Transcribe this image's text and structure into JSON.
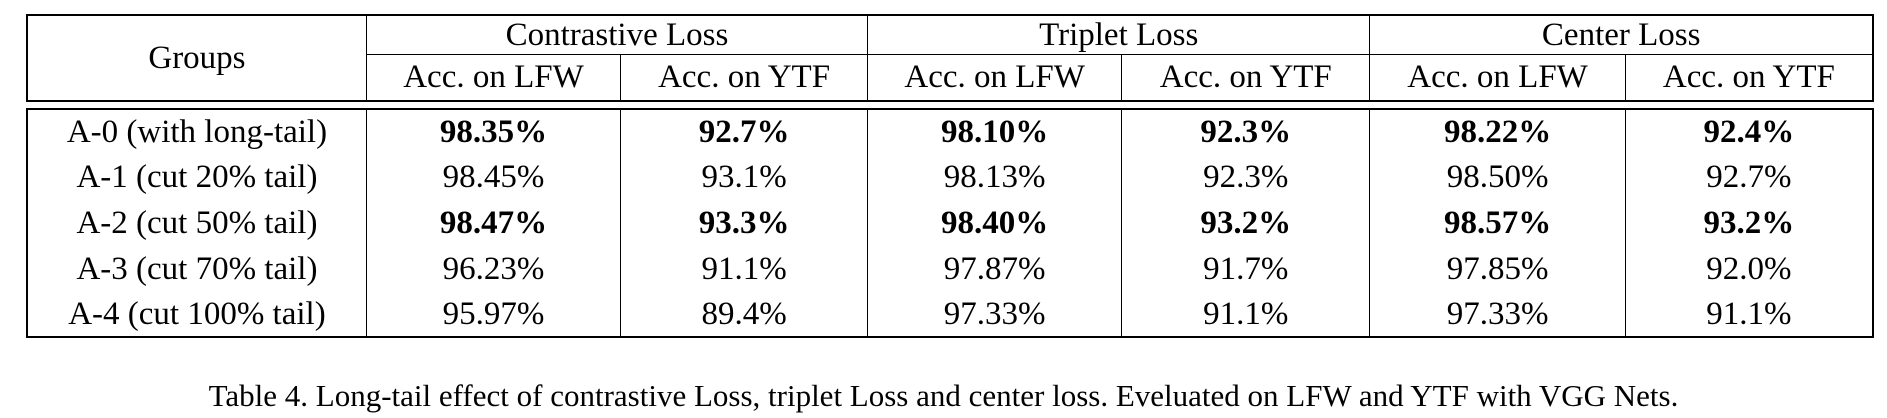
{
  "table": {
    "header": {
      "groups_label": "Groups",
      "loss_groups": [
        "Contrastive Loss",
        "Triplet Loss",
        "Center Loss"
      ],
      "sub_columns": [
        "Acc. on LFW",
        "Acc. on YTF",
        "Acc. on LFW",
        "Acc. on YTF",
        "Acc. on LFW",
        "Acc. on YTF"
      ]
    },
    "rows": [
      {
        "group": "A-0 (with long-tail)",
        "values": [
          "98.35%",
          "92.7%",
          "98.10%",
          "92.3%",
          "98.22%",
          "92.4%"
        ],
        "bold": true
      },
      {
        "group": "A-1 (cut 20% tail)",
        "values": [
          "98.45%",
          "93.1%",
          "98.13%",
          "92.3%",
          "98.50%",
          "92.7%"
        ],
        "bold": false
      },
      {
        "group": "A-2 (cut 50% tail)",
        "values": [
          "98.47%",
          "93.3%",
          "98.40%",
          "93.2%",
          "98.57%",
          "93.2%"
        ],
        "bold": true
      },
      {
        "group": "A-3 (cut 70% tail)",
        "values": [
          "96.23%",
          "91.1%",
          "97.87%",
          "91.7%",
          "97.85%",
          "92.0%"
        ],
        "bold": false
      },
      {
        "group": "A-4 (cut 100% tail)",
        "values": [
          "95.97%",
          "89.4%",
          "97.33%",
          "91.1%",
          "97.33%",
          "91.1%"
        ],
        "bold": false
      }
    ]
  },
  "caption": "Table 4. Long-tail effect of contrastive Loss, triplet Loss and center loss. Eveluated on LFW and YTF with VGG Nets."
}
